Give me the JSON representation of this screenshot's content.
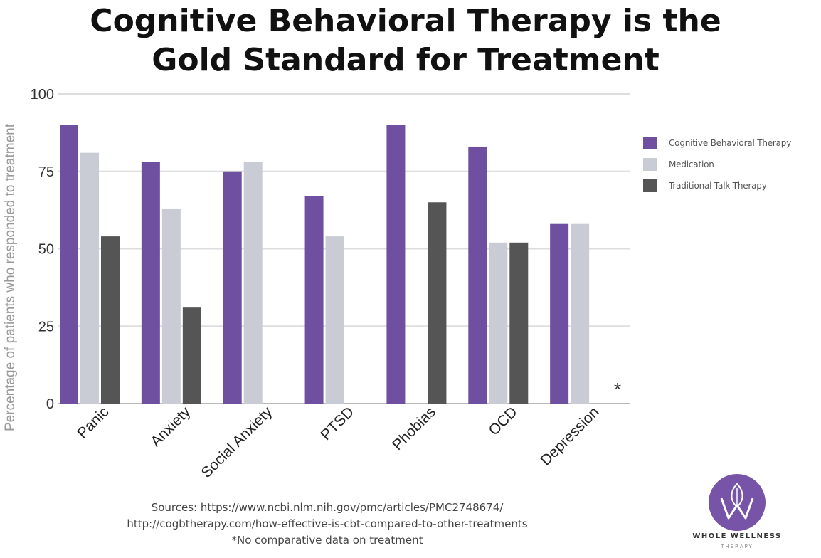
{
  "chart_data": {
    "type": "bar",
    "title_lines": [
      "Cognitive Behavioral Therapy is the",
      "Gold Standard for Treatment"
    ],
    "ylabel": "Percentage of patients who responded to treatment",
    "xlabel": "",
    "ylim": [
      0,
      100
    ],
    "yticks": [
      0,
      25,
      50,
      75,
      100
    ],
    "grid": true,
    "legend_position": "right",
    "categories": [
      "Panic",
      "Anxiety",
      "Social Anxiety",
      "PTSD",
      "Phobias",
      "OCD",
      "Depression"
    ],
    "series": [
      {
        "name": "Cognitive Behavioral Therapy",
        "color": "#6e4fa0",
        "values": [
          90,
          78,
          75,
          67,
          90,
          83,
          58
        ]
      },
      {
        "name": "Medication",
        "color": "#c9ccd4",
        "values": [
          81,
          63,
          78,
          54,
          null,
          52,
          58
        ]
      },
      {
        "name": "Traditional Talk Therapy",
        "color": "#555555",
        "values": [
          54,
          31,
          null,
          null,
          65,
          52,
          null
        ]
      }
    ],
    "annotation": "*"
  },
  "sources": {
    "line1": "Sources: https://www.ncbi.nlm.nih.gov/pmc/articles/PMC2748674/",
    "line2": "http://cogbtherapy.com/how-effective-is-cbt-compared-to-other-treatments",
    "line3": "*No comparative data on treatment"
  },
  "logo": {
    "name": "WHOLE WELLNESS",
    "sub": "THERAPY",
    "color": "#7754a8"
  }
}
